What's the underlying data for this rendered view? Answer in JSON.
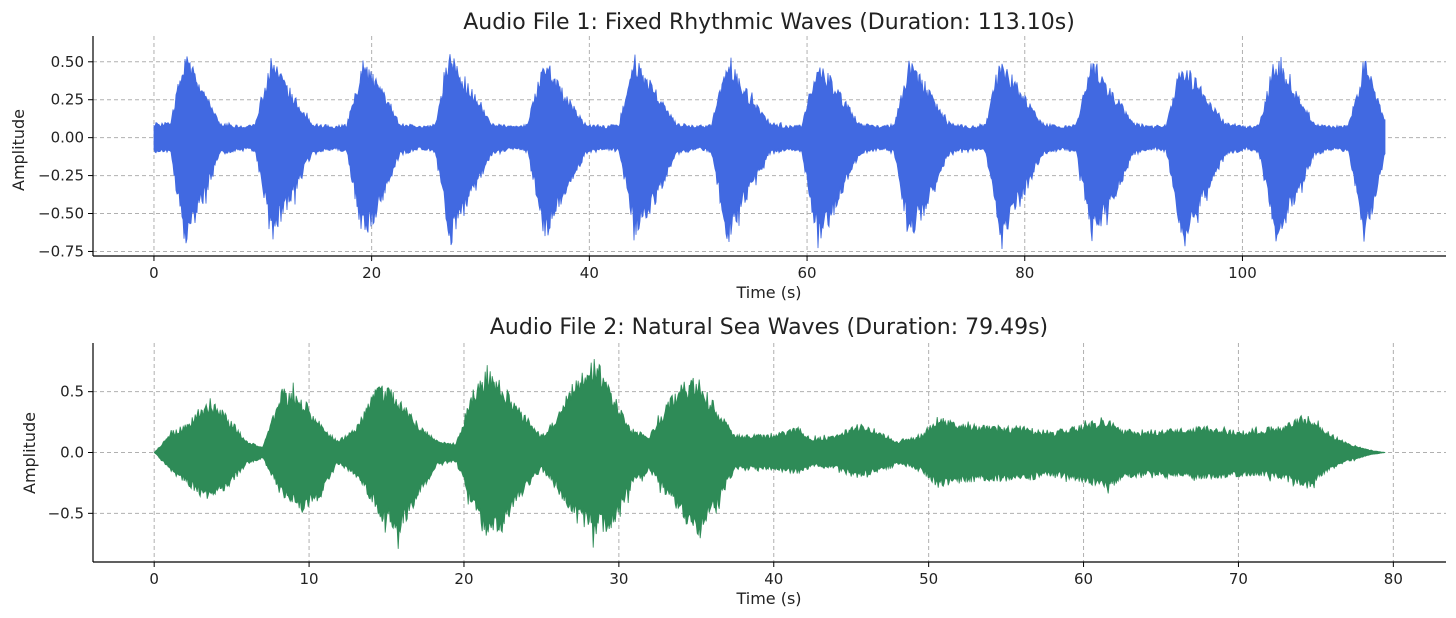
{
  "chart_data": [
    {
      "type": "line",
      "title": "Audio File 1: Fixed Rhythmic Waves (Duration: 113.10s)",
      "xlabel": "Time (s)",
      "ylabel": "Amplitude",
      "duration": 113.1,
      "xlim": [
        -5.6,
        118.7
      ],
      "ylim": [
        -0.78,
        0.67
      ],
      "xticks": [
        0,
        20,
        40,
        60,
        80,
        100
      ],
      "xtick_labels": [
        "0",
        "20",
        "40",
        "60",
        "80",
        "100"
      ],
      "yticks": [
        0.5,
        0.25,
        0.0,
        -0.25,
        -0.5,
        -0.75
      ],
      "ytick_labels": [
        "0.50",
        "0.25",
        "0.00",
        "−0.25",
        "−0.50",
        "−0.75"
      ],
      "grid": true,
      "color": "#4169e1",
      "envelope": {
        "t": [
          0,
          1.5,
          2.8,
          4.5,
          6.0,
          8.0,
          9.3,
          10.8,
          12.5,
          14.5,
          16.5,
          17.7,
          19.2,
          21.0,
          22.6,
          24.5,
          25.8,
          27.2,
          29.0,
          31.0,
          33.0,
          34.3,
          35.8,
          37.6,
          39.6,
          41.4,
          42.7,
          44.2,
          46.0,
          48.0,
          50.0,
          51.2,
          52.7,
          54.4,
          56.5,
          58.3,
          59.5,
          61.0,
          62.8,
          64.8,
          66.8,
          68.0,
          69.4,
          71.2,
          73.0,
          75.0,
          76.4,
          77.8,
          79.6,
          81.6,
          83.4,
          84.7,
          86.2,
          88.0,
          90.0,
          91.8,
          93.0,
          94.5,
          96.3,
          98.5,
          100.4,
          101.5,
          103.0,
          104.8,
          106.6,
          108.5,
          109.7,
          111.3,
          113.1
        ],
        "upper": [
          0.1,
          0.1,
          0.57,
          0.35,
          0.1,
          0.08,
          0.09,
          0.56,
          0.33,
          0.1,
          0.08,
          0.09,
          0.53,
          0.33,
          0.1,
          0.08,
          0.09,
          0.6,
          0.35,
          0.1,
          0.08,
          0.09,
          0.55,
          0.33,
          0.1,
          0.08,
          0.09,
          0.56,
          0.33,
          0.1,
          0.08,
          0.09,
          0.55,
          0.33,
          0.1,
          0.08,
          0.09,
          0.53,
          0.33,
          0.1,
          0.08,
          0.09,
          0.54,
          0.33,
          0.1,
          0.08,
          0.09,
          0.55,
          0.33,
          0.1,
          0.08,
          0.09,
          0.54,
          0.33,
          0.1,
          0.08,
          0.09,
          0.54,
          0.33,
          0.1,
          0.08,
          0.09,
          0.55,
          0.33,
          0.1,
          0.08,
          0.09,
          0.53,
          0.12
        ],
        "lower": [
          -0.1,
          -0.1,
          -0.72,
          -0.45,
          -0.12,
          -0.08,
          -0.1,
          -0.7,
          -0.45,
          -0.12,
          -0.08,
          -0.1,
          -0.7,
          -0.45,
          -0.12,
          -0.08,
          -0.1,
          -0.72,
          -0.45,
          -0.12,
          -0.08,
          -0.1,
          -0.68,
          -0.45,
          -0.12,
          -0.08,
          -0.1,
          -0.7,
          -0.45,
          -0.12,
          -0.08,
          -0.1,
          -0.72,
          -0.45,
          -0.12,
          -0.08,
          -0.1,
          -0.73,
          -0.45,
          -0.12,
          -0.08,
          -0.1,
          -0.72,
          -0.45,
          -0.12,
          -0.08,
          -0.1,
          -0.71,
          -0.45,
          -0.12,
          -0.08,
          -0.1,
          -0.7,
          -0.45,
          -0.12,
          -0.08,
          -0.1,
          -0.7,
          -0.45,
          -0.12,
          -0.08,
          -0.1,
          -0.71,
          -0.45,
          -0.12,
          -0.08,
          -0.1,
          -0.71,
          -0.12
        ]
      }
    },
    {
      "type": "line",
      "title": "Audio File 2: Natural Sea Waves (Duration: 79.49s)",
      "xlabel": "Time (s)",
      "ylabel": "Amplitude",
      "duration": 79.49,
      "xlim": [
        -3.95,
        83.4
      ],
      "ylim": [
        -0.9,
        0.9
      ],
      "xticks": [
        0,
        10,
        20,
        30,
        40,
        50,
        60,
        70,
        80
      ],
      "xtick_labels": [
        "0",
        "10",
        "20",
        "30",
        "40",
        "50",
        "60",
        "70",
        "80"
      ],
      "yticks": [
        0.5,
        0.0,
        -0.5
      ],
      "ytick_labels": [
        "0.5",
        "0.0",
        "−0.5"
      ],
      "grid": true,
      "color": "#2e8b57",
      "envelope": {
        "t": [
          0,
          1.0,
          2.5,
          3.6,
          4.8,
          6.0,
          7.0,
          8.3,
          9.5,
          10.7,
          11.8,
          13.0,
          14.6,
          15.8,
          17.0,
          18.3,
          19.5,
          20.5,
          21.5,
          22.3,
          23.5,
          25.0,
          26.0,
          27.0,
          28.5,
          29.5,
          30.8,
          32.0,
          33.5,
          35.0,
          36.2,
          37.5,
          38.5,
          40.0,
          41.5,
          42.5,
          44.0,
          45.3,
          46.5,
          48.0,
          49.5,
          50.5,
          52.0,
          54.0,
          56.0,
          58.0,
          60.0,
          61.5,
          62.5,
          64.0,
          66.0,
          68.0,
          70.0,
          71.5,
          73.0,
          74.5,
          75.5,
          77.0,
          78.5,
          79.49
        ],
        "upper": [
          0.0,
          0.15,
          0.3,
          0.45,
          0.3,
          0.1,
          0.05,
          0.55,
          0.45,
          0.25,
          0.1,
          0.2,
          0.6,
          0.45,
          0.25,
          0.1,
          0.08,
          0.5,
          0.72,
          0.6,
          0.4,
          0.15,
          0.3,
          0.6,
          0.82,
          0.5,
          0.2,
          0.15,
          0.5,
          0.65,
          0.4,
          0.15,
          0.15,
          0.15,
          0.22,
          0.12,
          0.14,
          0.25,
          0.2,
          0.1,
          0.15,
          0.3,
          0.25,
          0.22,
          0.22,
          0.18,
          0.24,
          0.28,
          0.2,
          0.18,
          0.2,
          0.22,
          0.18,
          0.2,
          0.24,
          0.32,
          0.2,
          0.08,
          0.02,
          0.0
        ],
        "lower": [
          0.0,
          -0.15,
          -0.32,
          -0.42,
          -0.3,
          -0.1,
          -0.05,
          -0.4,
          -0.5,
          -0.4,
          -0.1,
          -0.2,
          -0.55,
          -0.68,
          -0.4,
          -0.1,
          -0.08,
          -0.45,
          -0.75,
          -0.7,
          -0.4,
          -0.15,
          -0.3,
          -0.55,
          -0.68,
          -0.65,
          -0.3,
          -0.15,
          -0.45,
          -0.7,
          -0.5,
          -0.15,
          -0.15,
          -0.15,
          -0.18,
          -0.12,
          -0.14,
          -0.22,
          -0.18,
          -0.1,
          -0.15,
          -0.3,
          -0.25,
          -0.24,
          -0.24,
          -0.2,
          -0.25,
          -0.32,
          -0.22,
          -0.2,
          -0.22,
          -0.22,
          -0.2,
          -0.2,
          -0.24,
          -0.3,
          -0.18,
          -0.08,
          -0.02,
          0.0
        ]
      }
    }
  ]
}
